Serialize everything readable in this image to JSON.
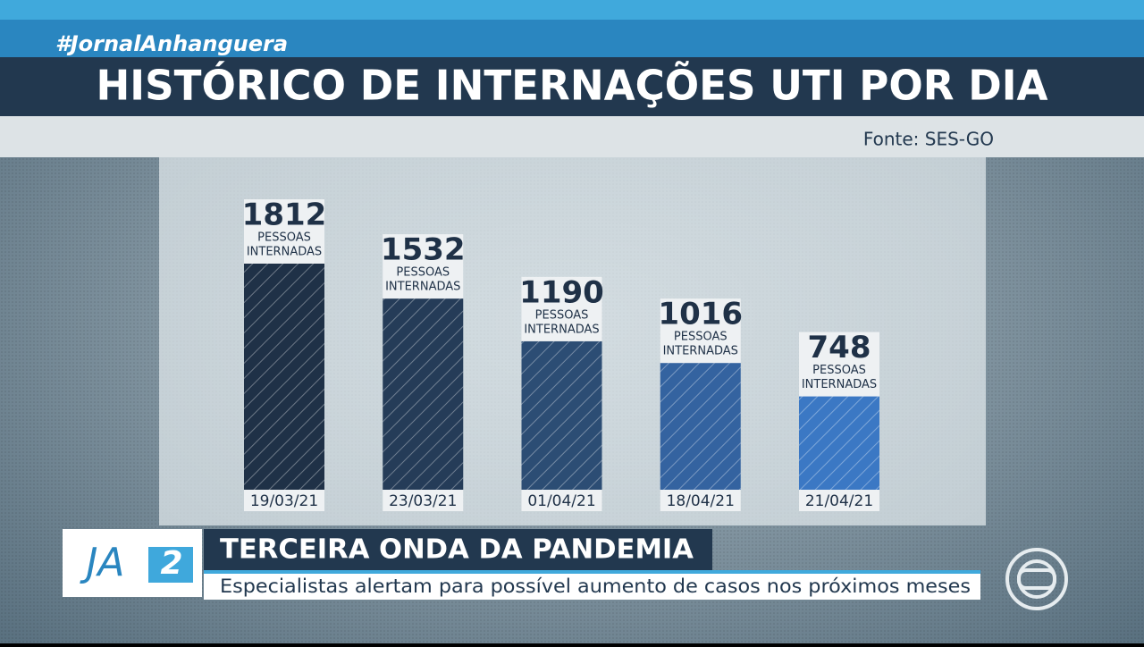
{
  "hashtag": "#JornalAnhanguera",
  "chart_data": {
    "type": "bar",
    "title": "HISTÓRICO DE INTERNAÇÕES UTI POR DIA",
    "source": "Fonte: SES-GO",
    "categories": [
      "19/03/21",
      "23/03/21",
      "01/04/21",
      "18/04/21",
      "21/04/21"
    ],
    "values": [
      1812,
      1532,
      1190,
      1016,
      748
    ],
    "value_caption": [
      "PESSOAS",
      "INTERNADAS"
    ],
    "colors": [
      "#1f3147",
      "#253c58",
      "#2c4d74",
      "#3463a0",
      "#3b78c4"
    ]
  },
  "lower_third": {
    "logo_text": "JA",
    "logo_number": "2",
    "headline": "TERCEIRA ONDA DA PANDEMIA",
    "subline": "Especialistas alertam para possível aumento de casos nos próximos meses"
  }
}
